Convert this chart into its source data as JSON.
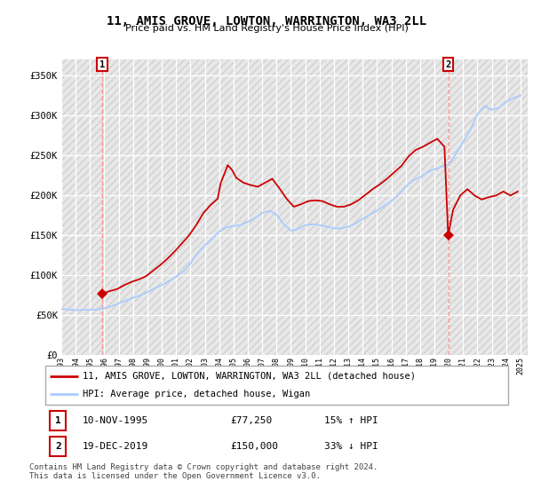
{
  "title": "11, AMIS GROVE, LOWTON, WARRINGTON, WA3 2LL",
  "subtitle": "Price paid vs. HM Land Registry's House Price Index (HPI)",
  "legend_line1": "11, AMIS GROVE, LOWTON, WARRINGTON, WA3 2LL (detached house)",
  "legend_line2": "HPI: Average price, detached house, Wigan",
  "annotation1_date": "10-NOV-1995",
  "annotation1_price": "£77,250",
  "annotation1_hpi": "15% ↑ HPI",
  "annotation2_date": "19-DEC-2019",
  "annotation2_price": "£150,000",
  "annotation2_hpi": "33% ↓ HPI",
  "footer": "Contains HM Land Registry data © Crown copyright and database right 2024.\nThis data is licensed under the Open Government Licence v3.0.",
  "background_color": "#ffffff",
  "plot_bg_color": "#e8e8e8",
  "grid_color": "#ffffff",
  "hpi_color": "#aaccff",
  "price_color": "#cc0000",
  "marker_color": "#cc0000",
  "vline_color": "#ff8888",
  "ylim": [
    0,
    370000
  ],
  "yticks": [
    0,
    50000,
    100000,
    150000,
    200000,
    250000,
    300000,
    350000
  ],
  "ytick_labels": [
    "£0",
    "£50K",
    "£100K",
    "£150K",
    "£200K",
    "£250K",
    "£300K",
    "£350K"
  ],
  "sale1_x": 1995.86,
  "sale1_y": 77250,
  "sale2_x": 2019.96,
  "sale2_y": 150000,
  "hpi_data": [
    [
      1993.0,
      58000
    ],
    [
      1993.5,
      57500
    ],
    [
      1994.0,
      56500
    ],
    [
      1994.5,
      57000
    ],
    [
      1995.0,
      57000
    ],
    [
      1995.5,
      57500
    ],
    [
      1996.0,
      59000
    ],
    [
      1996.5,
      61500
    ],
    [
      1997.0,
      65000
    ],
    [
      1997.5,
      68500
    ],
    [
      1998.0,
      72000
    ],
    [
      1998.5,
      75000
    ],
    [
      1999.0,
      79000
    ],
    [
      1999.5,
      84000
    ],
    [
      2000.0,
      88000
    ],
    [
      2000.5,
      93000
    ],
    [
      2001.0,
      98500
    ],
    [
      2001.5,
      105000
    ],
    [
      2002.0,
      115000
    ],
    [
      2002.5,
      128000
    ],
    [
      2003.0,
      138000
    ],
    [
      2003.5,
      146000
    ],
    [
      2004.0,
      155000
    ],
    [
      2004.5,
      160000
    ],
    [
      2005.0,
      162000
    ],
    [
      2005.5,
      163000
    ],
    [
      2006.0,
      167000
    ],
    [
      2006.5,
      172000
    ],
    [
      2007.0,
      178000
    ],
    [
      2007.5,
      181000
    ],
    [
      2008.0,
      176000
    ],
    [
      2008.5,
      164000
    ],
    [
      2009.0,
      156000
    ],
    [
      2009.5,
      158000
    ],
    [
      2010.0,
      163000
    ],
    [
      2010.5,
      164000
    ],
    [
      2011.0,
      163000
    ],
    [
      2011.5,
      161000
    ],
    [
      2012.0,
      159000
    ],
    [
      2012.5,
      159000
    ],
    [
      2013.0,
      161000
    ],
    [
      2013.5,
      165000
    ],
    [
      2014.0,
      171000
    ],
    [
      2014.5,
      176000
    ],
    [
      2015.0,
      181000
    ],
    [
      2015.5,
      187000
    ],
    [
      2016.0,
      193000
    ],
    [
      2016.5,
      201000
    ],
    [
      2017.0,
      211000
    ],
    [
      2017.5,
      219000
    ],
    [
      2018.0,
      223000
    ],
    [
      2018.5,
      229000
    ],
    [
      2019.0,
      233000
    ],
    [
      2019.5,
      236000
    ],
    [
      2020.0,
      239000
    ],
    [
      2020.5,
      252000
    ],
    [
      2021.0,
      267000
    ],
    [
      2021.5,
      282000
    ],
    [
      2022.0,
      302000
    ],
    [
      2022.5,
      312000
    ],
    [
      2023.0,
      307000
    ],
    [
      2023.5,
      310000
    ],
    [
      2024.0,
      317000
    ],
    [
      2024.5,
      322000
    ],
    [
      2025.0,
      325000
    ]
  ],
  "price_data": [
    [
      1995.86,
      77250
    ],
    [
      1996.3,
      80000
    ],
    [
      1996.9,
      83000
    ],
    [
      1997.4,
      88000
    ],
    [
      1997.9,
      92000
    ],
    [
      1998.4,
      95000
    ],
    [
      1998.9,
      99000
    ],
    [
      1999.4,
      106000
    ],
    [
      1999.9,
      113000
    ],
    [
      2000.4,
      121000
    ],
    [
      2000.9,
      130000
    ],
    [
      2001.4,
      140000
    ],
    [
      2001.9,
      150000
    ],
    [
      2002.4,
      163000
    ],
    [
      2002.9,
      178000
    ],
    [
      2003.4,
      188000
    ],
    [
      2003.9,
      196000
    ],
    [
      2004.1,
      215000
    ],
    [
      2004.6,
      238000
    ],
    [
      2004.9,
      232000
    ],
    [
      2005.2,
      222000
    ],
    [
      2005.7,
      216000
    ],
    [
      2006.2,
      213000
    ],
    [
      2006.7,
      211000
    ],
    [
      2007.2,
      216000
    ],
    [
      2007.7,
      221000
    ],
    [
      2008.2,
      209000
    ],
    [
      2008.7,
      196000
    ],
    [
      2009.2,
      186000
    ],
    [
      2009.7,
      189000
    ],
    [
      2010.2,
      193000
    ],
    [
      2010.7,
      194000
    ],
    [
      2011.2,
      193000
    ],
    [
      2011.7,
      189000
    ],
    [
      2012.2,
      186000
    ],
    [
      2012.7,
      186000
    ],
    [
      2013.2,
      189000
    ],
    [
      2013.7,
      194000
    ],
    [
      2014.2,
      201000
    ],
    [
      2014.7,
      208000
    ],
    [
      2015.2,
      214000
    ],
    [
      2015.7,
      221000
    ],
    [
      2016.2,
      229000
    ],
    [
      2016.7,
      237000
    ],
    [
      2017.2,
      249000
    ],
    [
      2017.7,
      257000
    ],
    [
      2018.2,
      261000
    ],
    [
      2018.7,
      266000
    ],
    [
      2019.2,
      271000
    ],
    [
      2019.7,
      261000
    ],
    [
      2019.96,
      150000
    ],
    [
      2020.3,
      182000
    ],
    [
      2020.8,
      200000
    ],
    [
      2021.3,
      208000
    ],
    [
      2021.8,
      200000
    ],
    [
      2022.3,
      195000
    ],
    [
      2022.8,
      198000
    ],
    [
      2023.3,
      200000
    ],
    [
      2023.8,
      205000
    ],
    [
      2024.3,
      200000
    ],
    [
      2024.8,
      205000
    ]
  ],
  "xtick_years": [
    1993,
    1994,
    1995,
    1996,
    1997,
    1998,
    1999,
    2000,
    2001,
    2002,
    2003,
    2004,
    2005,
    2006,
    2007,
    2008,
    2009,
    2010,
    2011,
    2012,
    2013,
    2014,
    2015,
    2016,
    2017,
    2018,
    2019,
    2020,
    2021,
    2022,
    2023,
    2024,
    2025
  ]
}
